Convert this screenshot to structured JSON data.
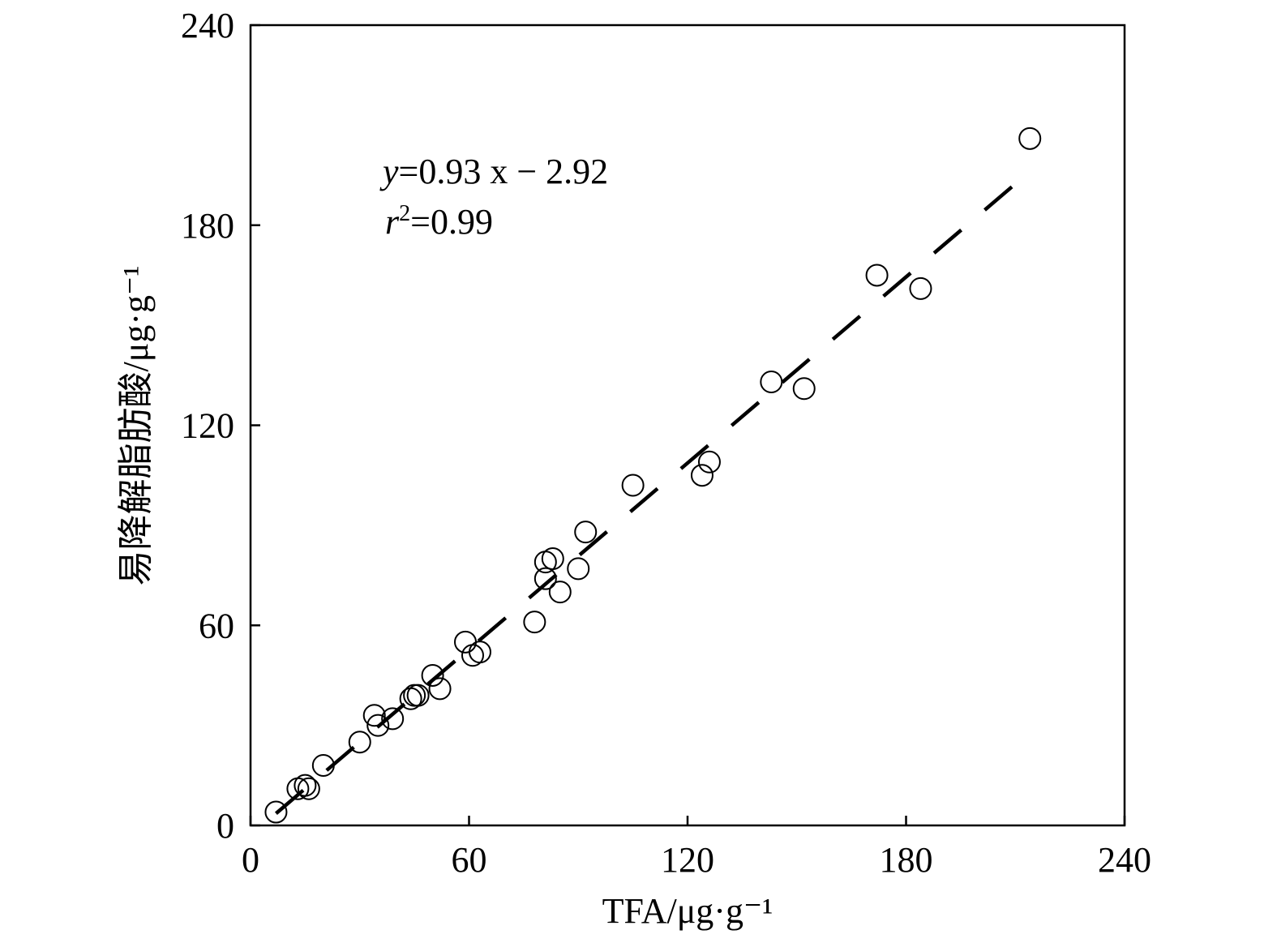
{
  "chart_data": {
    "type": "scatter",
    "title": "",
    "xlabel": "TFA/μg·g⁻¹",
    "ylabel": "易降解脂肪酸/μg·g⁻¹",
    "xlim": [
      0,
      240
    ],
    "ylim": [
      0,
      240
    ],
    "xticks": [
      "0",
      "60",
      "120",
      "180",
      "240"
    ],
    "yticks": [
      "0",
      "60",
      "120",
      "180",
      "240"
    ],
    "grid": false,
    "legend": "none",
    "annotations": {
      "equation_y": "y",
      "equation_rest": "=0.93 x − 2.92",
      "r2_r": "r",
      "r2_sup": "2",
      "r2_rest": "=0.99"
    },
    "fit_line": {
      "slope": 0.93,
      "intercept": -2.92,
      "x_range": [
        7,
        214
      ]
    },
    "series": [
      {
        "marker": "open-circle",
        "points": [
          [
            7,
            4
          ],
          [
            13,
            11
          ],
          [
            15,
            12
          ],
          [
            16,
            11
          ],
          [
            20,
            18
          ],
          [
            30,
            25
          ],
          [
            34,
            33
          ],
          [
            35,
            30
          ],
          [
            39,
            32
          ],
          [
            44,
            38
          ],
          [
            45,
            39
          ],
          [
            46,
            39
          ],
          [
            50,
            45
          ],
          [
            52,
            41
          ],
          [
            59,
            55
          ],
          [
            61,
            51
          ],
          [
            63,
            52
          ],
          [
            78,
            61
          ],
          [
            81,
            74
          ],
          [
            81,
            79
          ],
          [
            83,
            80
          ],
          [
            85,
            70
          ],
          [
            90,
            77
          ],
          [
            92,
            88
          ],
          [
            105,
            102
          ],
          [
            124,
            105
          ],
          [
            126,
            109
          ],
          [
            143,
            133
          ],
          [
            152,
            131
          ],
          [
            172,
            165
          ],
          [
            184,
            161
          ],
          [
            214,
            206
          ]
        ]
      }
    ]
  }
}
